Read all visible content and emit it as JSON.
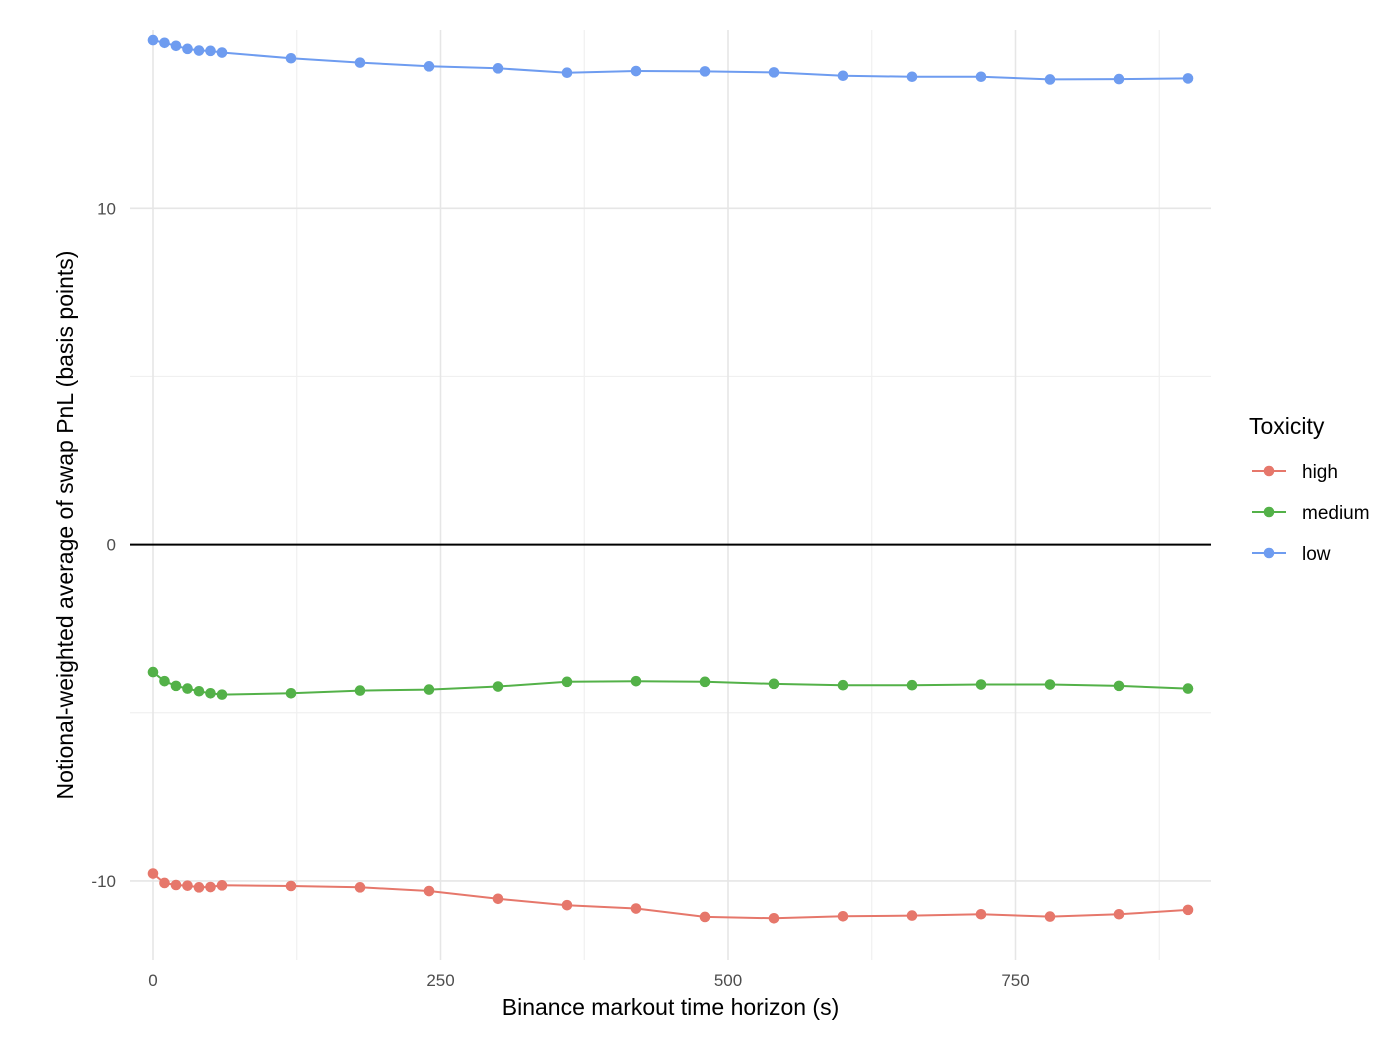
{
  "chart_data": {
    "type": "line",
    "title": "",
    "xlabel": "Binance markout time horizon (s)",
    "ylabel": "Notional-weighted average of swap PnL (basis points)",
    "xlim": [
      -20,
      920
    ],
    "ylim": [
      -12.35,
      15.3
    ],
    "x_ticks": [
      0,
      250,
      500,
      750
    ],
    "x_tick_labels": [
      "0",
      "250",
      "500",
      "750"
    ],
    "x_minor_ticks": [
      125,
      375,
      625,
      875
    ],
    "y_ticks": [
      -10,
      0,
      10
    ],
    "y_tick_labels": [
      "-10",
      "0",
      "10"
    ],
    "y_minor_ticks": [
      -5,
      5
    ],
    "grid": true,
    "zero_line": true,
    "legend": {
      "title": "Toxicity",
      "position": "right"
    },
    "x": [
      0,
      10,
      20,
      30,
      40,
      50,
      60,
      120,
      180,
      240,
      300,
      360,
      420,
      480,
      540,
      600,
      660,
      720,
      780,
      840,
      900
    ],
    "series": [
      {
        "name": "high",
        "color": "#E6776B",
        "values": [
          -9.78,
          -10.06,
          -10.12,
          -10.14,
          -10.19,
          -10.18,
          -10.13,
          -10.15,
          -10.19,
          -10.3,
          -10.53,
          -10.72,
          -10.82,
          -11.07,
          -11.11,
          -11.05,
          -11.03,
          -10.99,
          -11.06,
          -10.99,
          -10.86
        ]
      },
      {
        "name": "medium",
        "color": "#53B148",
        "values": [
          -3.79,
          -4.06,
          -4.2,
          -4.28,
          -4.36,
          -4.42,
          -4.46,
          -4.42,
          -4.34,
          -4.31,
          -4.22,
          -4.08,
          -4.06,
          -4.08,
          -4.14,
          -4.18,
          -4.18,
          -4.16,
          -4.16,
          -4.2,
          -4.28
        ]
      },
      {
        "name": "low",
        "color": "#6E9CF0",
        "values": [
          15.0,
          14.92,
          14.83,
          14.74,
          14.69,
          14.68,
          14.63,
          14.46,
          14.33,
          14.22,
          14.16,
          14.03,
          14.08,
          14.07,
          14.04,
          13.94,
          13.91,
          13.91,
          13.83,
          13.84,
          13.86
        ]
      }
    ]
  }
}
